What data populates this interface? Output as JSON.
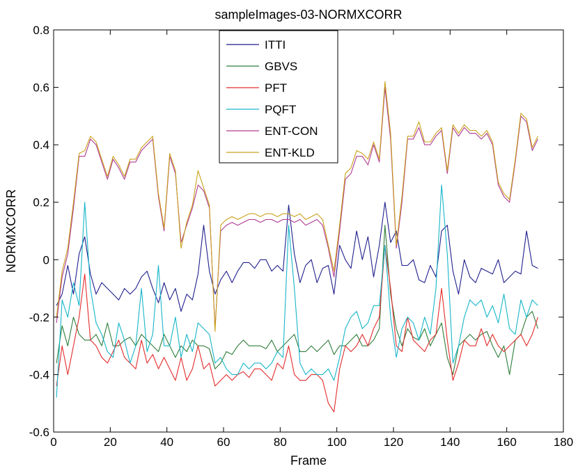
{
  "chart_data": {
    "type": "line",
    "title": "sampleImages-03-NORMXCORR",
    "xlabel": "Frame",
    "ylabel": "NORMXCORR",
    "xlim": [
      0,
      180
    ],
    "ylim": [
      -0.6,
      0.8
    ],
    "xticks": [
      0,
      20,
      40,
      60,
      80,
      100,
      120,
      140,
      160,
      180
    ],
    "yticks": [
      -0.6,
      -0.4,
      -0.2,
      0,
      0.2,
      0.4,
      0.6,
      0.8
    ],
    "xtick_labels": [
      "0",
      "20",
      "40",
      "60",
      "80",
      "100",
      "120",
      "140",
      "160",
      "180"
    ],
    "ytick_labels": [
      "-0.6",
      "-0.4",
      "-0.2",
      "0",
      "0.2",
      "0.4",
      "0.6",
      "0.8"
    ],
    "legend_position": "top-center",
    "series": [
      {
        "name": "ITTI",
        "color": "#1f1f8c",
        "x": [
          1,
          3,
          5,
          7,
          9,
          11,
          13,
          15,
          17,
          19,
          21,
          23,
          25,
          27,
          29,
          31,
          33,
          35,
          37,
          39,
          41,
          43,
          45,
          47,
          49,
          51,
          53,
          55,
          57,
          59,
          61,
          63,
          65,
          67,
          69,
          71,
          73,
          75,
          77,
          79,
          81,
          83,
          85,
          87,
          89,
          91,
          93,
          95,
          97,
          99,
          101,
          103,
          105,
          107,
          109,
          111,
          113,
          115,
          117,
          119,
          121,
          123,
          125,
          127,
          129,
          131,
          133,
          135,
          137,
          139,
          141,
          143,
          145,
          147,
          149,
          151,
          153,
          155,
          157,
          159,
          161,
          163,
          165,
          167,
          169,
          171
        ],
        "y": [
          -0.16,
          -0.12,
          -0.02,
          -0.12,
          0.02,
          0.08,
          -0.05,
          -0.12,
          -0.08,
          -0.1,
          -0.12,
          -0.14,
          -0.1,
          -0.12,
          -0.1,
          -0.06,
          -0.04,
          -0.1,
          -0.15,
          -0.08,
          -0.14,
          -0.1,
          -0.18,
          -0.12,
          -0.14,
          -0.05,
          0.12,
          -0.04,
          -0.12,
          -0.07,
          -0.04,
          -0.08,
          -0.04,
          -0.01,
          -0.01,
          -0.03,
          0.0,
          0.0,
          -0.04,
          -0.02,
          -0.04,
          0.19,
          0.02,
          -0.08,
          -0.02,
          0.0,
          -0.08,
          -0.03,
          -0.02,
          -0.12,
          0.05,
          0.0,
          -0.03,
          0.1,
          0.0,
          0.08,
          -0.06,
          0.05,
          0.2,
          0.06,
          0.1,
          -0.02,
          -0.02,
          0.0,
          -0.07,
          -0.08,
          -0.02,
          -0.06,
          0.1,
          0.12,
          -0.04,
          -0.12,
          0.0,
          -0.06,
          -0.08,
          -0.03,
          -0.04,
          -0.05,
          0.0,
          -0.08,
          -0.06,
          -0.04,
          -0.05,
          0.1,
          -0.02,
          -0.03
        ]
      },
      {
        "name": "GBVS",
        "color": "#2e7d3a",
        "x": [
          1,
          3,
          5,
          7,
          9,
          11,
          13,
          15,
          17,
          19,
          21,
          23,
          25,
          27,
          29,
          31,
          33,
          35,
          37,
          39,
          41,
          43,
          45,
          47,
          49,
          51,
          53,
          55,
          57,
          59,
          61,
          63,
          65,
          67,
          69,
          71,
          73,
          75,
          77,
          79,
          81,
          83,
          85,
          87,
          89,
          91,
          93,
          95,
          97,
          99,
          101,
          103,
          105,
          107,
          109,
          111,
          113,
          115,
          117,
          119,
          121,
          123,
          125,
          127,
          129,
          131,
          133,
          135,
          137,
          139,
          141,
          143,
          145,
          147,
          149,
          151,
          153,
          155,
          157,
          159,
          161,
          163,
          165,
          167,
          169,
          171
        ],
        "y": [
          -0.36,
          -0.23,
          -0.3,
          -0.2,
          -0.26,
          -0.28,
          -0.28,
          -0.26,
          -0.3,
          -0.22,
          -0.3,
          -0.3,
          -0.28,
          -0.27,
          -0.3,
          -0.26,
          -0.28,
          -0.3,
          -0.32,
          -0.26,
          -0.3,
          -0.34,
          -0.3,
          -0.32,
          -0.28,
          -0.3,
          -0.3,
          -0.31,
          -0.38,
          -0.36,
          -0.32,
          -0.33,
          -0.3,
          -0.28,
          -0.3,
          -0.3,
          -0.3,
          -0.31,
          -0.28,
          -0.32,
          -0.3,
          -0.28,
          -0.26,
          -0.32,
          -0.32,
          -0.3,
          -0.32,
          -0.3,
          -0.28,
          -0.33,
          -0.3,
          -0.3,
          -0.28,
          -0.26,
          -0.3,
          -0.3,
          -0.28,
          -0.24,
          0.12,
          -0.12,
          -0.24,
          -0.3,
          -0.24,
          -0.27,
          -0.28,
          -0.24,
          -0.3,
          -0.26,
          -0.22,
          -0.34,
          -0.4,
          -0.3,
          -0.28,
          -0.26,
          -0.28,
          -0.26,
          -0.25,
          -0.3,
          -0.34,
          -0.3,
          -0.4,
          -0.28,
          -0.26,
          -0.2,
          -0.18,
          -0.24
        ]
      },
      {
        "name": "PFT",
        "color": "#e32b2b",
        "x": [
          1,
          3,
          5,
          7,
          9,
          11,
          13,
          15,
          17,
          19,
          21,
          23,
          25,
          27,
          29,
          31,
          33,
          35,
          37,
          39,
          41,
          43,
          45,
          47,
          49,
          51,
          53,
          55,
          57,
          59,
          61,
          63,
          65,
          67,
          69,
          71,
          73,
          75,
          77,
          79,
          81,
          83,
          85,
          87,
          89,
          91,
          93,
          95,
          97,
          99,
          101,
          103,
          105,
          107,
          109,
          111,
          113,
          115,
          117,
          119,
          121,
          123,
          125,
          127,
          129,
          131,
          133,
          135,
          137,
          139,
          141,
          143,
          145,
          147,
          149,
          151,
          153,
          155,
          157,
          159,
          161,
          163,
          165,
          167,
          169,
          171
        ],
        "y": [
          -0.44,
          -0.3,
          -0.4,
          -0.3,
          -0.2,
          -0.05,
          -0.28,
          -0.3,
          -0.34,
          -0.36,
          -0.32,
          -0.28,
          -0.34,
          -0.36,
          -0.38,
          -0.28,
          -0.36,
          -0.33,
          -0.38,
          -0.34,
          -0.38,
          -0.42,
          -0.34,
          -0.42,
          -0.38,
          -0.3,
          -0.38,
          -0.36,
          -0.44,
          -0.42,
          -0.4,
          -0.42,
          -0.4,
          -0.39,
          -0.41,
          -0.38,
          -0.38,
          -0.4,
          -0.42,
          -0.36,
          -0.38,
          -0.3,
          -0.4,
          -0.42,
          -0.42,
          -0.4,
          -0.4,
          -0.42,
          -0.5,
          -0.53,
          -0.38,
          -0.3,
          -0.32,
          -0.3,
          -0.26,
          -0.3,
          -0.24,
          -0.2,
          0.05,
          -0.1,
          -0.3,
          -0.32,
          -0.2,
          -0.28,
          -0.3,
          -0.32,
          -0.28,
          -0.26,
          -0.1,
          -0.28,
          -0.42,
          -0.36,
          -0.28,
          -0.3,
          -0.3,
          -0.24,
          -0.3,
          -0.26,
          -0.3,
          -0.32,
          -0.3,
          -0.28,
          -0.26,
          -0.3,
          -0.26,
          -0.2
        ]
      },
      {
        "name": "PQFT",
        "color": "#17b5c9",
        "x": [
          1,
          3,
          5,
          7,
          9,
          11,
          13,
          15,
          17,
          19,
          21,
          23,
          25,
          27,
          29,
          31,
          33,
          35,
          37,
          39,
          41,
          43,
          45,
          47,
          49,
          51,
          53,
          55,
          57,
          59,
          61,
          63,
          65,
          67,
          69,
          71,
          73,
          75,
          77,
          79,
          81,
          83,
          85,
          87,
          89,
          91,
          93,
          95,
          97,
          99,
          101,
          103,
          105,
          107,
          109,
          111,
          113,
          115,
          117,
          119,
          121,
          123,
          125,
          127,
          129,
          131,
          133,
          135,
          137,
          139,
          141,
          143,
          145,
          147,
          149,
          151,
          153,
          155,
          157,
          159,
          161,
          163,
          165,
          167,
          169,
          171
        ],
        "y": [
          -0.48,
          -0.14,
          -0.2,
          -0.08,
          -0.16,
          0.2,
          -0.1,
          -0.22,
          -0.26,
          -0.32,
          -0.34,
          -0.22,
          -0.28,
          -0.36,
          -0.3,
          -0.1,
          -0.32,
          -0.26,
          -0.02,
          -0.3,
          -0.3,
          -0.2,
          -0.34,
          -0.26,
          -0.32,
          -0.22,
          -0.24,
          -0.26,
          -0.36,
          -0.34,
          -0.38,
          -0.4,
          -0.4,
          -0.36,
          -0.38,
          -0.36,
          -0.36,
          -0.38,
          -0.36,
          -0.32,
          -0.34,
          0.12,
          -0.1,
          -0.36,
          -0.4,
          -0.38,
          -0.4,
          -0.4,
          -0.38,
          -0.42,
          -0.34,
          -0.24,
          -0.2,
          -0.18,
          -0.24,
          -0.22,
          -0.16,
          -0.16,
          0.05,
          -0.2,
          -0.34,
          -0.24,
          -0.2,
          -0.22,
          -0.28,
          -0.2,
          -0.26,
          -0.1,
          0.26,
          0.02,
          -0.36,
          -0.3,
          -0.2,
          -0.14,
          -0.16,
          -0.14,
          -0.2,
          -0.16,
          -0.22,
          -0.12,
          -0.24,
          -0.26,
          -0.14,
          -0.2,
          -0.14,
          -0.16
        ]
      },
      {
        "name": "ENT-CON",
        "color": "#b03a92",
        "x": [
          1,
          3,
          5,
          7,
          9,
          11,
          13,
          15,
          17,
          19,
          21,
          23,
          25,
          27,
          29,
          31,
          33,
          35,
          37,
          39,
          41,
          43,
          45,
          47,
          49,
          51,
          53,
          55,
          57,
          59,
          61,
          63,
          65,
          67,
          69,
          71,
          73,
          75,
          77,
          79,
          81,
          83,
          85,
          87,
          89,
          91,
          93,
          95,
          97,
          99,
          101,
          103,
          105,
          107,
          109,
          111,
          113,
          115,
          117,
          119,
          121,
          123,
          125,
          127,
          129,
          131,
          133,
          135,
          137,
          139,
          141,
          143,
          145,
          147,
          149,
          151,
          153,
          155,
          157,
          159,
          161,
          163,
          165,
          167,
          169,
          171
        ],
        "y": [
          -0.22,
          -0.06,
          0.02,
          0.18,
          0.36,
          0.36,
          0.42,
          0.4,
          0.34,
          0.28,
          0.35,
          0.32,
          0.28,
          0.34,
          0.34,
          0.38,
          0.4,
          0.42,
          0.22,
          0.1,
          0.36,
          0.3,
          0.06,
          0.12,
          0.18,
          0.26,
          0.24,
          0.18,
          -0.24,
          0.1,
          0.12,
          0.13,
          0.12,
          0.13,
          0.14,
          0.14,
          0.13,
          0.14,
          0.14,
          0.13,
          0.14,
          0.14,
          0.13,
          0.14,
          0.12,
          0.13,
          0.14,
          0.12,
          0.04,
          -0.06,
          0.1,
          0.28,
          0.3,
          0.36,
          0.36,
          0.33,
          0.4,
          0.34,
          0.6,
          0.42,
          0.04,
          0.2,
          0.42,
          0.42,
          0.46,
          0.4,
          0.4,
          0.43,
          0.45,
          0.3,
          0.46,
          0.43,
          0.46,
          0.44,
          0.44,
          0.42,
          0.44,
          0.4,
          0.26,
          0.22,
          0.2,
          0.34,
          0.5,
          0.48,
          0.38,
          0.42
        ]
      },
      {
        "name": "ENT-KLD",
        "color": "#c9a21b",
        "x": [
          1,
          3,
          5,
          7,
          9,
          11,
          13,
          15,
          17,
          19,
          21,
          23,
          25,
          27,
          29,
          31,
          33,
          35,
          37,
          39,
          41,
          43,
          45,
          47,
          49,
          51,
          53,
          55,
          57,
          59,
          61,
          63,
          65,
          67,
          69,
          71,
          73,
          75,
          77,
          79,
          81,
          83,
          85,
          87,
          89,
          91,
          93,
          95,
          97,
          99,
          101,
          103,
          105,
          107,
          109,
          111,
          113,
          115,
          117,
          119,
          121,
          123,
          125,
          127,
          129,
          131,
          133,
          135,
          137,
          139,
          141,
          143,
          145,
          147,
          149,
          151,
          153,
          155,
          157,
          159,
          161,
          163,
          165,
          167,
          169,
          171
        ],
        "y": [
          -0.2,
          -0.04,
          0.04,
          0.2,
          0.37,
          0.38,
          0.43,
          0.41,
          0.35,
          0.29,
          0.36,
          0.33,
          0.29,
          0.35,
          0.35,
          0.39,
          0.41,
          0.43,
          0.23,
          0.11,
          0.37,
          0.31,
          0.04,
          0.13,
          0.19,
          0.31,
          0.25,
          0.19,
          -0.25,
          0.12,
          0.14,
          0.15,
          0.14,
          0.15,
          0.16,
          0.16,
          0.15,
          0.16,
          0.16,
          0.15,
          0.16,
          0.16,
          0.15,
          0.16,
          0.14,
          0.15,
          0.16,
          0.14,
          0.05,
          -0.04,
          0.12,
          0.3,
          0.32,
          0.38,
          0.37,
          0.35,
          0.41,
          0.35,
          0.62,
          0.44,
          0.05,
          0.22,
          0.43,
          0.43,
          0.48,
          0.41,
          0.41,
          0.44,
          0.46,
          0.31,
          0.47,
          0.44,
          0.47,
          0.45,
          0.45,
          0.43,
          0.45,
          0.41,
          0.27,
          0.23,
          0.21,
          0.35,
          0.51,
          0.49,
          0.39,
          0.43
        ]
      }
    ]
  }
}
